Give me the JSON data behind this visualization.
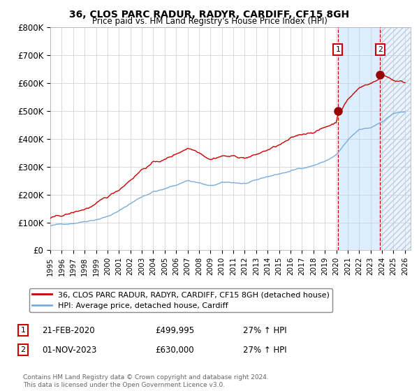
{
  "title1": "36, CLOS PARC RADUR, RADYR, CARDIFF, CF15 8GH",
  "title2": "Price paid vs. HM Land Registry's House Price Index (HPI)",
  "ylim": [
    0,
    800000
  ],
  "yticks": [
    0,
    100000,
    200000,
    300000,
    400000,
    500000,
    600000,
    700000,
    800000
  ],
  "ytick_labels": [
    "£0",
    "£100K",
    "£200K",
    "£300K",
    "£400K",
    "£500K",
    "£600K",
    "£700K",
    "£800K"
  ],
  "xlim_start": 1995.0,
  "xlim_end": 2026.5,
  "marker1_x": 2020.13,
  "marker1_y": 499995,
  "marker2_x": 2023.83,
  "marker2_y": 630000,
  "marker1_date": "21-FEB-2020",
  "marker1_price": "£499,995",
  "marker1_hpi": "27% ↑ HPI",
  "marker2_date": "01-NOV-2023",
  "marker2_price": "£630,000",
  "marker2_hpi": "27% ↑ HPI",
  "line1_color": "#cc0000",
  "line2_color": "#7aaddc",
  "background_color": "#ffffff",
  "grid_color": "#cccccc",
  "shade_color": "#ddeeff",
  "legend_label1": "36, CLOS PARC RADUR, RADYR, CARDIFF, CF15 8GH (detached house)",
  "legend_label2": "HPI: Average price, detached house, Cardiff",
  "footer": "Contains HM Land Registry data © Crown copyright and database right 2024.\nThis data is licensed under the Open Government Licence v3.0."
}
